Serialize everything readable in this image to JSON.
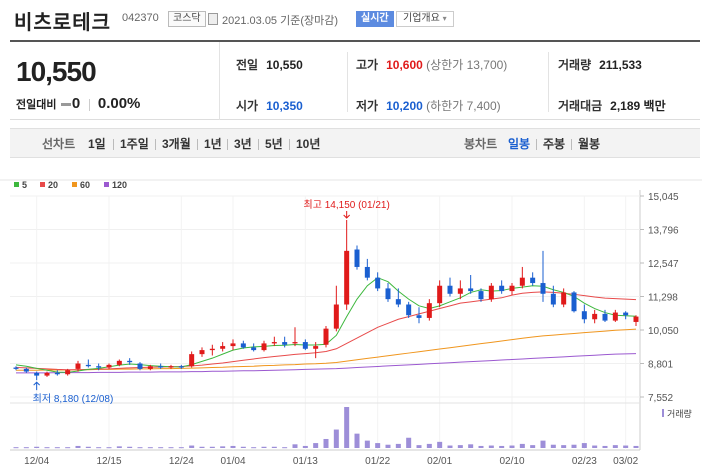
{
  "header": {
    "company": "비츠로테크",
    "code": "042370",
    "market": "코스닥",
    "date": "2021.03.05",
    "date_suffix": "기준(장마감)",
    "live_label": "실시간",
    "info_label": "기업개요"
  },
  "price": {
    "current": "10,550",
    "change_label": "전일대비",
    "change": "0",
    "change_pct": "0.00%"
  },
  "stats": {
    "prev_close_label": "전일",
    "prev_close": "10,550",
    "high_label": "고가",
    "high": "10,600",
    "upper_limit": "(상한가 13,700)",
    "volume_label": "거래량",
    "volume": "211,533",
    "open_label": "시가",
    "open": "10,350",
    "low_label": "저가",
    "low": "10,200",
    "lower_limit": "(하한가 7,400)",
    "trade_value_label": "거래대금",
    "trade_value": "2,189 백만"
  },
  "line_tabs": {
    "label": "선차트",
    "items": [
      "1일",
      "1주일",
      "3개월",
      "1년",
      "3년",
      "5년",
      "10년"
    ]
  },
  "candle_tabs": {
    "label": "봉차트",
    "items": [
      "일봉",
      "주봉",
      "월봉"
    ],
    "active": "일봉"
  },
  "colors": {
    "up": "#e01a1a",
    "down": "#1a5fd0",
    "ma5": "#3db83d",
    "ma20": "#e84a4a",
    "ma60": "#f0961e",
    "ma120": "#9b59d0",
    "volume": "#9d8ed8"
  },
  "chart_data": {
    "type": "candlestick",
    "legend": [
      {
        "name": "5",
        "color": "#3db83d"
      },
      {
        "name": "20",
        "color": "#e84a4a"
      },
      {
        "name": "60",
        "color": "#f0961e"
      },
      {
        "name": "120",
        "color": "#9b59d0"
      }
    ],
    "y_ticks": [
      "15,045",
      "13,796",
      "12,547",
      "11,298",
      "10,050",
      "8,801",
      "7,552"
    ],
    "ylim": [
      7552,
      15045
    ],
    "x_ticks": [
      {
        "label": "12/04",
        "index": 2
      },
      {
        "label": "12/15",
        "index": 9
      },
      {
        "label": "12/24",
        "index": 16
      },
      {
        "label": "01/04",
        "index": 21
      },
      {
        "label": "01/13",
        "index": 28
      },
      {
        "label": "01/22",
        "index": 35
      },
      {
        "label": "02/01",
        "index": 41
      },
      {
        "label": "02/10",
        "index": 48
      },
      {
        "label": "02/23",
        "index": 55
      },
      {
        "label": "03/02",
        "index": 59
      }
    ],
    "max_annotation": "최고 14,150 (01/21)",
    "min_annotation": "최저 8,180 (12/08)",
    "volume_label": "거래량",
    "candles": [
      {
        "o": 8650,
        "h": 8700,
        "l": 8550,
        "c": 8600
      },
      {
        "o": 8600,
        "h": 8650,
        "l": 8450,
        "c": 8500
      },
      {
        "o": 8450,
        "h": 8500,
        "l": 8180,
        "c": 8350
      },
      {
        "o": 8350,
        "h": 8500,
        "l": 8300,
        "c": 8450
      },
      {
        "o": 8450,
        "h": 8550,
        "l": 8350,
        "c": 8400
      },
      {
        "o": 8400,
        "h": 8600,
        "l": 8350,
        "c": 8550
      },
      {
        "o": 8600,
        "h": 8900,
        "l": 8500,
        "c": 8800
      },
      {
        "o": 8750,
        "h": 8950,
        "l": 8650,
        "c": 8700
      },
      {
        "o": 8700,
        "h": 8800,
        "l": 8550,
        "c": 8650
      },
      {
        "o": 8650,
        "h": 8800,
        "l": 8600,
        "c": 8750
      },
      {
        "o": 8750,
        "h": 8950,
        "l": 8700,
        "c": 8900
      },
      {
        "o": 8900,
        "h": 9000,
        "l": 8750,
        "c": 8850
      },
      {
        "o": 8800,
        "h": 8850,
        "l": 8550,
        "c": 8600
      },
      {
        "o": 8600,
        "h": 8750,
        "l": 8550,
        "c": 8700
      },
      {
        "o": 8700,
        "h": 8800,
        "l": 8600,
        "c": 8650
      },
      {
        "o": 8650,
        "h": 8750,
        "l": 8600,
        "c": 8700
      },
      {
        "o": 8700,
        "h": 8750,
        "l": 8600,
        "c": 8650
      },
      {
        "o": 8700,
        "h": 9250,
        "l": 8650,
        "c": 9150
      },
      {
        "o": 9150,
        "h": 9400,
        "l": 9050,
        "c": 9300
      },
      {
        "o": 9300,
        "h": 9500,
        "l": 9100,
        "c": 9350
      },
      {
        "o": 9350,
        "h": 9600,
        "l": 9250,
        "c": 9450
      },
      {
        "o": 9450,
        "h": 9700,
        "l": 9300,
        "c": 9550
      },
      {
        "o": 9550,
        "h": 9650,
        "l": 9350,
        "c": 9400
      },
      {
        "o": 9400,
        "h": 9550,
        "l": 9250,
        "c": 9300
      },
      {
        "o": 9300,
        "h": 9650,
        "l": 9250,
        "c": 9550
      },
      {
        "o": 9550,
        "h": 9800,
        "l": 9450,
        "c": 9600
      },
      {
        "o": 9600,
        "h": 9800,
        "l": 9400,
        "c": 9500
      },
      {
        "o": 9550,
        "h": 10150,
        "l": 9450,
        "c": 9600
      },
      {
        "o": 9600,
        "h": 9700,
        "l": 9300,
        "c": 9350
      },
      {
        "o": 9350,
        "h": 9600,
        "l": 9000,
        "c": 9450
      },
      {
        "o": 9500,
        "h": 10200,
        "l": 9400,
        "c": 10100
      },
      {
        "o": 10100,
        "h": 11700,
        "l": 10000,
        "c": 11000
      },
      {
        "o": 11000,
        "h": 14150,
        "l": 10800,
        "c": 13000
      },
      {
        "o": 13050,
        "h": 13200,
        "l": 12300,
        "c": 12400
      },
      {
        "o": 12400,
        "h": 12700,
        "l": 11900,
        "c": 12000
      },
      {
        "o": 12000,
        "h": 12200,
        "l": 11500,
        "c": 11600
      },
      {
        "o": 11600,
        "h": 11800,
        "l": 11100,
        "c": 11200
      },
      {
        "o": 11200,
        "h": 11600,
        "l": 10900,
        "c": 11000
      },
      {
        "o": 11000,
        "h": 11100,
        "l": 10500,
        "c": 10600
      },
      {
        "o": 10600,
        "h": 10900,
        "l": 10300,
        "c": 10500
      },
      {
        "o": 10500,
        "h": 11200,
        "l": 10400,
        "c": 11050
      },
      {
        "o": 11050,
        "h": 11900,
        "l": 10900,
        "c": 11700
      },
      {
        "o": 11700,
        "h": 12000,
        "l": 11300,
        "c": 11400
      },
      {
        "o": 11400,
        "h": 11900,
        "l": 11200,
        "c": 11600
      },
      {
        "o": 11600,
        "h": 12100,
        "l": 11400,
        "c": 11500
      },
      {
        "o": 11500,
        "h": 11600,
        "l": 11100,
        "c": 11200
      },
      {
        "o": 11200,
        "h": 11800,
        "l": 11100,
        "c": 11700
      },
      {
        "o": 11700,
        "h": 11900,
        "l": 11400,
        "c": 11500
      },
      {
        "o": 11500,
        "h": 11800,
        "l": 11350,
        "c": 11700
      },
      {
        "o": 11700,
        "h": 12400,
        "l": 11600,
        "c": 12000
      },
      {
        "o": 12000,
        "h": 12200,
        "l": 11700,
        "c": 11800
      },
      {
        "o": 11800,
        "h": 13000,
        "l": 11100,
        "c": 11400
      },
      {
        "o": 11400,
        "h": 11700,
        "l": 10900,
        "c": 11000
      },
      {
        "o": 11000,
        "h": 11600,
        "l": 10900,
        "c": 11450
      },
      {
        "o": 11450,
        "h": 11500,
        "l": 10700,
        "c": 10750
      },
      {
        "o": 10750,
        "h": 11000,
        "l": 10300,
        "c": 10450
      },
      {
        "o": 10450,
        "h": 10800,
        "l": 10300,
        "c": 10650
      },
      {
        "o": 10650,
        "h": 10800,
        "l": 10350,
        "c": 10400
      },
      {
        "o": 10400,
        "h": 10800,
        "l": 10350,
        "c": 10700
      },
      {
        "o": 10700,
        "h": 10750,
        "l": 10450,
        "c": 10600
      },
      {
        "o": 10350,
        "h": 10600,
        "l": 10200,
        "c": 10550
      }
    ],
    "ma5": [
      8750,
      8700,
      8620,
      8550,
      8480,
      8470,
      8520,
      8580,
      8620,
      8680,
      8740,
      8780,
      8760,
      8720,
      8700,
      8680,
      8670,
      8760,
      8880,
      9000,
      9150,
      9300,
      9380,
      9420,
      9440,
      9470,
      9480,
      9510,
      9490,
      9490,
      9520,
      9850,
      10550,
      11200,
      11700,
      12000,
      11850,
      11500,
      11200,
      10950,
      10850,
      10950,
      11100,
      11250,
      11450,
      11550,
      11500,
      11520,
      11600,
      11650,
      11700,
      11680,
      11550,
      11450,
      11300,
      11050,
      10850,
      10700,
      10600,
      10580,
      10560
    ],
    "ma20": [
      8650,
      8640,
      8620,
      8600,
      8580,
      8570,
      8570,
      8580,
      8590,
      8600,
      8620,
      8640,
      8650,
      8660,
      8670,
      8680,
      8690,
      8710,
      8740,
      8780,
      8820,
      8870,
      8920,
      8970,
      9020,
      9060,
      9100,
      9140,
      9170,
      9200,
      9250,
      9350,
      9550,
      9750,
      9950,
      10150,
      10300,
      10450,
      10550,
      10650,
      10750,
      10850,
      10950,
      11050,
      11100,
      11150,
      11200,
      11250,
      11350,
      11420,
      11450,
      11470,
      11450,
      11420,
      11380,
      11330,
      11280,
      11240,
      11220,
      11200,
      11180
    ],
    "ma60": [
      8550,
      8550,
      8550,
      8560,
      8560,
      8560,
      8570,
      8570,
      8580,
      8580,
      8590,
      8590,
      8600,
      8600,
      8610,
      8610,
      8620,
      8630,
      8640,
      8650,
      8660,
      8680,
      8690,
      8700,
      8720,
      8730,
      8750,
      8760,
      8780,
      8790,
      8810,
      8840,
      8890,
      8940,
      8990,
      9040,
      9090,
      9140,
      9190,
      9240,
      9290,
      9340,
      9390,
      9440,
      9490,
      9540,
      9590,
      9640,
      9690,
      9740,
      9790,
      9830,
      9860,
      9890,
      9920,
      9950,
      9980,
      10010,
      10040,
      10060,
      10080
    ],
    "ma120": [
      8450,
      8450,
      8450,
      8450,
      8460,
      8460,
      8460,
      8460,
      8470,
      8470,
      8470,
      8480,
      8480,
      8480,
      8490,
      8490,
      8490,
      8500,
      8500,
      8510,
      8510,
      8520,
      8530,
      8530,
      8540,
      8550,
      8560,
      8570,
      8580,
      8590,
      8600,
      8610,
      8630,
      8650,
      8670,
      8690,
      8710,
      8730,
      8750,
      8770,
      8790,
      8810,
      8830,
      8850,
      8870,
      8890,
      8910,
      8930,
      8950,
      8970,
      8990,
      9010,
      9030,
      9050,
      9070,
      9090,
      9110,
      9130,
      9150,
      9160,
      9170
    ],
    "volume": [
      0.02,
      0.02,
      0.03,
      0.02,
      0.02,
      0.02,
      0.05,
      0.03,
      0.02,
      0.02,
      0.04,
      0.03,
      0.02,
      0.02,
      0.02,
      0.02,
      0.02,
      0.06,
      0.03,
      0.03,
      0.04,
      0.05,
      0.03,
      0.02,
      0.03,
      0.03,
      0.02,
      0.09,
      0.05,
      0.12,
      0.22,
      0.45,
      1.0,
      0.35,
      0.18,
      0.12,
      0.08,
      0.1,
      0.25,
      0.07,
      0.1,
      0.15,
      0.06,
      0.07,
      0.09,
      0.05,
      0.06,
      0.05,
      0.06,
      0.1,
      0.07,
      0.18,
      0.08,
      0.07,
      0.08,
      0.12,
      0.06,
      0.05,
      0.07,
      0.06,
      0.05
    ]
  }
}
